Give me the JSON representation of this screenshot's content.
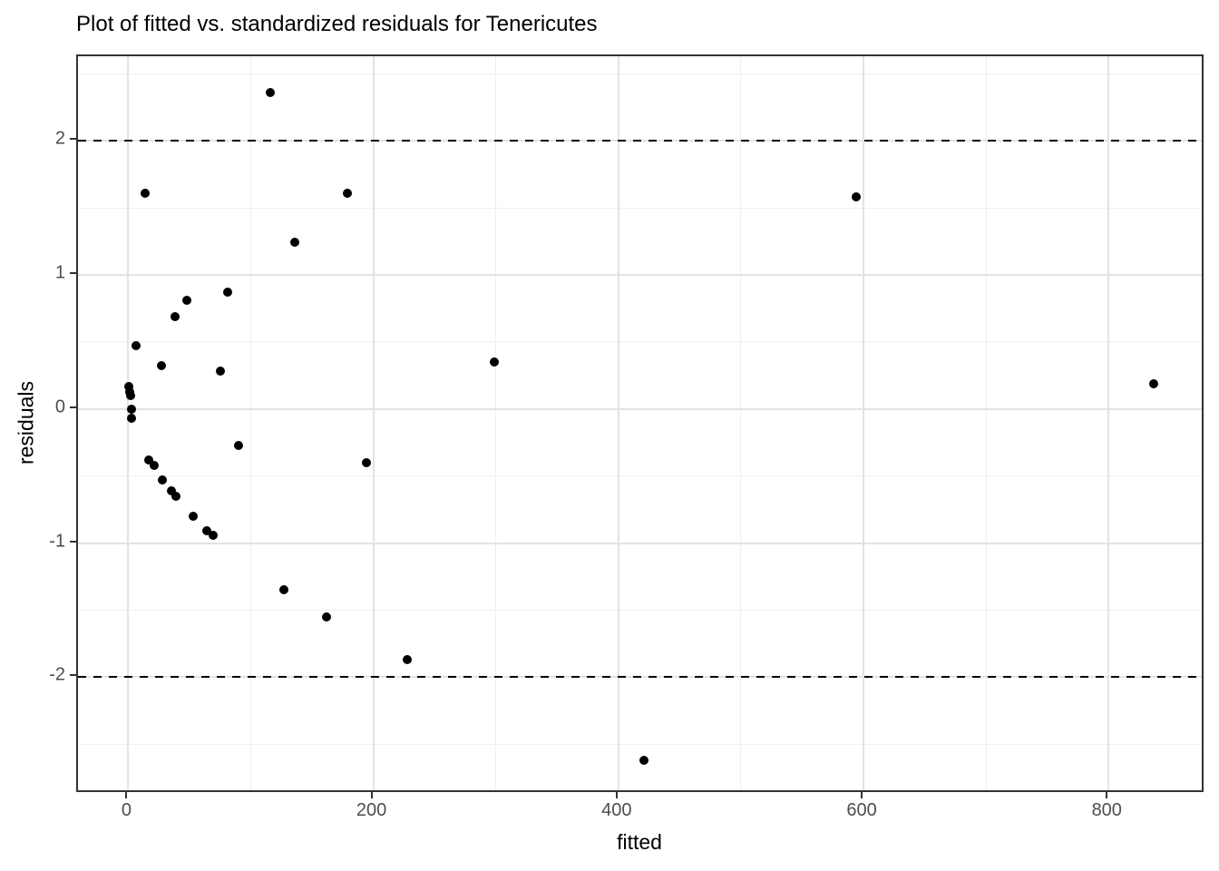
{
  "title": "Plot of fitted vs. standardized residuals for Tenericutes",
  "chart_data": {
    "type": "scatter",
    "title": "Plot of fitted vs. standardized residuals for Tenericutes",
    "xlabel": "fitted",
    "ylabel": "residuals",
    "xlim": [
      -41,
      879
    ],
    "ylim": [
      -2.87,
      2.63
    ],
    "x_major_ticks": [
      0,
      200,
      400,
      600,
      800
    ],
    "x_minor_gridlines": [
      100,
      300,
      500,
      700
    ],
    "y_major_ticks": [
      -2,
      -1,
      0,
      1,
      2
    ],
    "y_minor_gridlines": [
      -2.5,
      -1.5,
      -0.5,
      0.5,
      1.5,
      2.5
    ],
    "reference_lines": [
      {
        "y": 2,
        "style": "dashed",
        "color": "#000000"
      },
      {
        "y": -2,
        "style": "dashed",
        "color": "#000000"
      }
    ],
    "points": [
      [
        116,
        2.36
      ],
      [
        13.5,
        1.61
      ],
      [
        179,
        1.61
      ],
      [
        594,
        1.58
      ],
      [
        136,
        1.24
      ],
      [
        81,
        0.87
      ],
      [
        48,
        0.81
      ],
      [
        38,
        0.69
      ],
      [
        6,
        0.47
      ],
      [
        299,
        0.35
      ],
      [
        27,
        0.32
      ],
      [
        75,
        0.28
      ],
      [
        837,
        0.19
      ],
      [
        0.8,
        0.17
      ],
      [
        1.3,
        0.13
      ],
      [
        1.6,
        0.1
      ],
      [
        2.3,
        0.0
      ],
      [
        2.8,
        -0.07
      ],
      [
        90,
        -0.27
      ],
      [
        17,
        -0.38
      ],
      [
        194,
        -0.4
      ],
      [
        21,
        -0.42
      ],
      [
        28,
        -0.53
      ],
      [
        35,
        -0.61
      ],
      [
        39,
        -0.65
      ],
      [
        53,
        -0.8
      ],
      [
        64,
        -0.91
      ],
      [
        69,
        -0.94
      ],
      [
        127,
        -1.35
      ],
      [
        162,
        -1.55
      ],
      [
        228,
        -1.87
      ],
      [
        421,
        -2.62
      ]
    ],
    "grid_on": true,
    "legend_position": "none",
    "colors": {
      "point": "#000000",
      "grid_major": "#e3e3e3",
      "grid_minor": "#efefef",
      "panel_border": "#333333",
      "tick": "#333333",
      "tick_label": "#4d4d4d",
      "axis_title": "#000000",
      "chart_title": "#000000",
      "background": "#ffffff"
    }
  }
}
